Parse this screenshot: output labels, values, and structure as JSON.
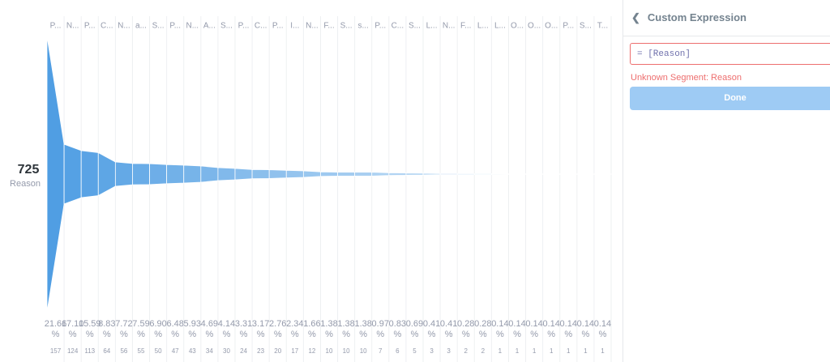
{
  "funnel": {
    "total": 725,
    "metric": "Reason",
    "steps": [
      {
        "label": "P...",
        "percent": "21.66%",
        "count": 157
      },
      {
        "label": "N...",
        "percent": "17.10%",
        "count": 124
      },
      {
        "label": "P...",
        "percent": "15.59%",
        "count": 113
      },
      {
        "label": "C...",
        "percent": "8.83%",
        "count": 64
      },
      {
        "label": "N...",
        "percent": "7.72%",
        "count": 56
      },
      {
        "label": "a...",
        "percent": "7.59%",
        "count": 55
      },
      {
        "label": "S...",
        "percent": "6.90%",
        "count": 50
      },
      {
        "label": "P...",
        "percent": "6.48%",
        "count": 47
      },
      {
        "label": "N...",
        "percent": "5.93%",
        "count": 43
      },
      {
        "label": "A...",
        "percent": "4.69%",
        "count": 34
      },
      {
        "label": "S...",
        "percent": "4.14%",
        "count": 30
      },
      {
        "label": "P...",
        "percent": "3.31%",
        "count": 24
      },
      {
        "label": "C...",
        "percent": "3.17%",
        "count": 23
      },
      {
        "label": "P...",
        "percent": "2.76%",
        "count": 20
      },
      {
        "label": "I...",
        "percent": "2.34%",
        "count": 17
      },
      {
        "label": "N...",
        "percent": "1.66%",
        "count": 12
      },
      {
        "label": "F...",
        "percent": "1.38%",
        "count": 10
      },
      {
        "label": "S...",
        "percent": "1.38%",
        "count": 10
      },
      {
        "label": "s...",
        "percent": "1.38%",
        "count": 10
      },
      {
        "label": "P...",
        "percent": "0.97%",
        "count": 7
      },
      {
        "label": "C...",
        "percent": "0.83%",
        "count": 6
      },
      {
        "label": "S...",
        "percent": "0.69%",
        "count": 5
      },
      {
        "label": "L...",
        "percent": "0.41%",
        "count": 3
      },
      {
        "label": "N...",
        "percent": "0.41%",
        "count": 3
      },
      {
        "label": "F...",
        "percent": "0.28%",
        "count": 2
      },
      {
        "label": "L...",
        "percent": "0.28%",
        "count": 2
      },
      {
        "label": "L...",
        "percent": "0.14%",
        "count": 1
      },
      {
        "label": "O...",
        "percent": "0.14%",
        "count": 1
      },
      {
        "label": "O...",
        "percent": "0.14%",
        "count": 1
      },
      {
        "label": "O...",
        "percent": "0.14%",
        "count": 1
      },
      {
        "label": "P...",
        "percent": "0.14%",
        "count": 1
      },
      {
        "label": "S...",
        "percent": "0.14%",
        "count": 1
      },
      {
        "label": "T...",
        "percent": "0.14%",
        "count": 1
      }
    ]
  },
  "panel": {
    "title": "Custom Expression",
    "expression": "= [Reason]",
    "error": "Unknown Segment: Reason",
    "button": "Done"
  }
}
